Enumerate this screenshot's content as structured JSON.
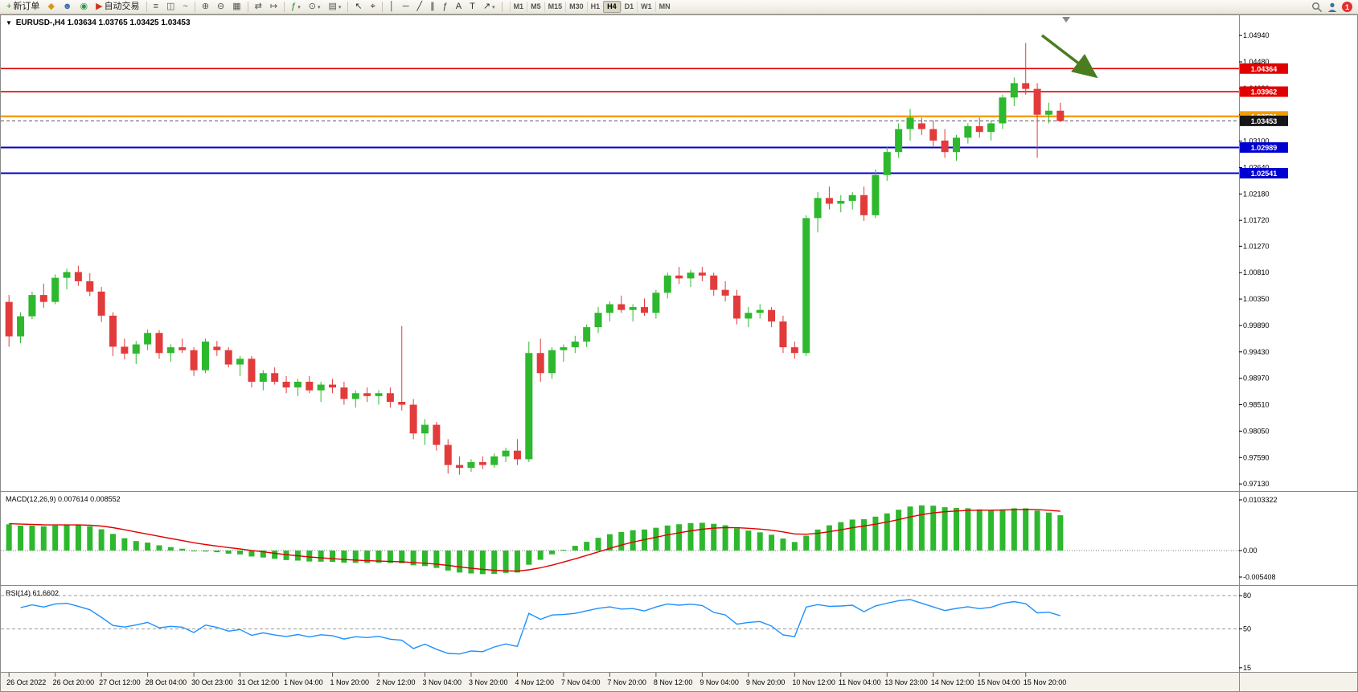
{
  "toolbar": {
    "tools": [
      {
        "name": "new-order-button",
        "glyph": "+",
        "color": "#189818",
        "label": "新订单"
      },
      {
        "name": "charts-button",
        "glyph": "◆",
        "color": "#d09820"
      },
      {
        "name": "profile-button",
        "glyph": "☻",
        "color": "#3a6ea5"
      },
      {
        "name": "news-button",
        "glyph": "◉",
        "color": "#2a9a4a"
      },
      {
        "name": "auto-trading-button",
        "glyph": "▶",
        "color": "#cc3322",
        "label": "自动交易"
      },
      {
        "sep": true
      },
      {
        "name": "bars-chart-button",
        "glyph": "≡",
        "color": "#555555"
      },
      {
        "name": "candles-chart-button",
        "glyph": "◫",
        "color": "#555555"
      },
      {
        "name": "line-chart-button",
        "glyph": "~",
        "color": "#555555"
      },
      {
        "sep": true
      },
      {
        "name": "zoom-in-button",
        "glyph": "⊕",
        "color": "#555555"
      },
      {
        "name": "zoom-out-button",
        "glyph": "⊖",
        "color": "#555555"
      },
      {
        "name": "tile-windows-button",
        "glyph": "▦",
        "color": "#555555"
      },
      {
        "sep": true
      },
      {
        "name": "auto-scroll-button",
        "glyph": "⇄",
        "color": "#555555"
      },
      {
        "name": "chart-shift-button",
        "glyph": "↦",
        "color": "#555555"
      },
      {
        "sep": true
      },
      {
        "name": "indicators-button",
        "glyph": "ƒ",
        "color": "#1f7a1f",
        "dropdown": true
      },
      {
        "name": "periods-button",
        "glyph": "⊙",
        "color": "#555555",
        "dropdown": true
      },
      {
        "name": "templates-button",
        "glyph": "▤",
        "color": "#555555",
        "dropdown": true
      },
      {
        "sep": true
      },
      {
        "name": "cursor-button",
        "glyph": "↖",
        "color": "#333333"
      },
      {
        "name": "crosshair-button",
        "glyph": "⌖",
        "color": "#333333"
      },
      {
        "sep": true
      },
      {
        "name": "vertical-line-button",
        "glyph": "│",
        "color": "#333333"
      },
      {
        "name": "horizontal-line-button",
        "glyph": "─",
        "color": "#333333"
      },
      {
        "name": "trendline-button",
        "glyph": "╱",
        "color": "#333333"
      },
      {
        "name": "channel-button",
        "glyph": "∥",
        "color": "#333333"
      },
      {
        "name": "fibonacci-button",
        "glyph": "ƒ",
        "color": "#333333"
      },
      {
        "name": "text-button",
        "glyph": "A",
        "color": "#333333"
      },
      {
        "name": "label-button",
        "glyph": "T",
        "color": "#333333"
      },
      {
        "name": "arrows-button",
        "glyph": "↗",
        "color": "#333333",
        "dropdown": true
      },
      {
        "sep": true
      }
    ],
    "timeframes": [
      "M1",
      "M5",
      "M15",
      "M30",
      "H1",
      "H4",
      "D1",
      "W1",
      "MN"
    ],
    "active_timeframe": "H4",
    "right": {
      "notification_count": "1"
    }
  },
  "chart": {
    "header": {
      "collapse_glyph": "▼",
      "symbol_period": "EURUSD-,H4",
      "ohlc": "1.03634 1.03765 1.03425 1.03453"
    },
    "levels": [
      {
        "price": 1.04364,
        "label": "1.04364",
        "color": "#e00000",
        "width": 1.6,
        "type": "resistance"
      },
      {
        "price": 1.03962,
        "label": "1.03962",
        "color": "#e00000",
        "width": 1.6,
        "type": "resistance"
      },
      {
        "price": 1.03531,
        "label": "1.03531",
        "color": "#f59d00",
        "width": 2.4,
        "type": "pivot"
      },
      {
        "price": 1.02989,
        "label": "1.02989",
        "color": "#0000d0",
        "width": 2.0,
        "type": "support"
      },
      {
        "price": 1.02541,
        "label": "1.02541",
        "color": "#0000d0",
        "width": 2.0,
        "type": "support"
      }
    ],
    "current_price": {
      "value": 1.03453,
      "label": "1.03453"
    },
    "price_axis": [
      "1.04940",
      "1.04480",
      "1.04020",
      "1.03560",
      "1.03100",
      "1.02640",
      "1.02180",
      "1.01720",
      "1.01270",
      "1.00810",
      "1.00350",
      "0.99890",
      "0.99430",
      "0.98970",
      "0.98510",
      "0.98050",
      "0.97590",
      "0.97130"
    ],
    "time_axis": [
      "26 Oct 2022",
      "26 Oct 20:00",
      "27 Oct 12:00",
      "28 Oct 04:00",
      "30 Oct 23:00",
      "31 Oct 12:00",
      "1 Nov 04:00",
      "1 Nov 20:00",
      "2 Nov 12:00",
      "3 Nov 04:00",
      "3 Nov 20:00",
      "4 Nov 12:00",
      "7 Nov 04:00",
      "7 Nov 20:00",
      "8 Nov 12:00",
      "9 Nov 04:00",
      "9 Nov 20:00",
      "10 Nov 12:00",
      "11 Nov 04:00",
      "13 Nov 23:00",
      "14 Nov 12:00",
      "15 Nov 04:00",
      "15 Nov 20:00"
    ]
  },
  "indicators": {
    "macd": {
      "label": "MACD(12,26,9)",
      "values": "0.007614 0.008552",
      "axis": [
        "0.0103322",
        "0.00",
        "-0.005408"
      ]
    },
    "rsi": {
      "label": "RSI(14)",
      "value": "61.6602",
      "axis": [
        "80",
        "50",
        "15"
      ],
      "levels": [
        80,
        50
      ]
    }
  },
  "chart_data": {
    "type": "candlestick",
    "symbol": "EURUSD-",
    "period": "H4",
    "colors": {
      "up": "#2db82d",
      "down": "#e23b3b",
      "macd_hist": "#2db82d",
      "macd_signal": "#e00000",
      "rsi_line": "#1e90ff",
      "level_red": "#e00000",
      "level_orange": "#f59d00",
      "level_blue": "#0000d0"
    },
    "annotation_arrow": {
      "color": "#4a7d1f",
      "direction": "down-right"
    },
    "candles": [
      [
        1.003,
        1.0042,
        0.9952,
        0.997
      ],
      [
        0.997,
        1.0012,
        0.9958,
        1.0005
      ],
      [
        1.0005,
        1.0048,
        1.0,
        1.0042
      ],
      [
        1.0042,
        1.0062,
        1.002,
        1.003
      ],
      [
        1.003,
        1.0078,
        1.0026,
        1.0072
      ],
      [
        1.0072,
        1.0088,
        1.0052,
        1.0082
      ],
      [
        1.0082,
        1.0093,
        1.0058,
        1.0066
      ],
      [
        1.0066,
        1.008,
        1.004,
        1.0048
      ],
      [
        1.0048,
        1.0056,
        0.9995,
        1.0006
      ],
      [
        1.0006,
        1.0012,
        0.9936,
        0.9952
      ],
      [
        0.9952,
        0.9966,
        0.993,
        0.994
      ],
      [
        0.994,
        0.9962,
        0.9922,
        0.9956
      ],
      [
        0.9956,
        0.9982,
        0.9946,
        0.9976
      ],
      [
        0.9976,
        0.9981,
        0.9931,
        0.9941
      ],
      [
        0.9941,
        0.9956,
        0.9926,
        0.9951
      ],
      [
        0.9951,
        0.9966,
        0.9941,
        0.9946
      ],
      [
        0.9946,
        0.9951,
        0.9901,
        0.9911
      ],
      [
        0.9911,
        0.9966,
        0.9906,
        0.9961
      ],
      [
        0.9952,
        0.9962,
        0.9936,
        0.9946
      ],
      [
        0.9946,
        0.9951,
        0.9916,
        0.9921
      ],
      [
        0.9921,
        0.9936,
        0.9901,
        0.9931
      ],
      [
        0.9931,
        0.9936,
        0.9881,
        0.9891
      ],
      [
        0.9891,
        0.9911,
        0.9876,
        0.9906
      ],
      [
        0.9906,
        0.9916,
        0.9886,
        0.9891
      ],
      [
        0.9891,
        0.9901,
        0.9871,
        0.9881
      ],
      [
        0.9881,
        0.9896,
        0.9866,
        0.9891
      ],
      [
        0.9891,
        0.9901,
        0.9871,
        0.9876
      ],
      [
        0.9876,
        0.9891,
        0.9856,
        0.9886
      ],
      [
        0.9886,
        0.9896,
        0.9871,
        0.9881
      ],
      [
        0.9881,
        0.9891,
        0.9851,
        0.9861
      ],
      [
        0.9861,
        0.9876,
        0.9846,
        0.9871
      ],
      [
        0.9871,
        0.9881,
        0.9856,
        0.9866
      ],
      [
        0.9866,
        0.9876,
        0.9851,
        0.9871
      ],
      [
        0.9871,
        0.9881,
        0.9846,
        0.9856
      ],
      [
        0.9856,
        0.9988,
        0.9841,
        0.9851
      ],
      [
        0.9851,
        0.9861,
        0.9791,
        0.9801
      ],
      [
        0.9801,
        0.9826,
        0.9781,
        0.9816
      ],
      [
        0.9816,
        0.9821,
        0.9771,
        0.9781
      ],
      [
        0.9781,
        0.9791,
        0.9731,
        0.9746
      ],
      [
        0.9746,
        0.9761,
        0.9729,
        0.9741
      ],
      [
        0.9741,
        0.9756,
        0.9734,
        0.9751
      ],
      [
        0.9751,
        0.9761,
        0.9739,
        0.9746
      ],
      [
        0.9746,
        0.9766,
        0.9741,
        0.9761
      ],
      [
        0.9761,
        0.9776,
        0.9751,
        0.9771
      ],
      [
        0.9771,
        0.9791,
        0.9746,
        0.9756
      ],
      [
        0.9756,
        0.9961,
        0.9751,
        0.9941
      ],
      [
        0.9941,
        0.9966,
        0.9891,
        0.9906
      ],
      [
        0.9906,
        0.9951,
        0.9896,
        0.9946
      ],
      [
        0.9946,
        0.9956,
        0.9926,
        0.9951
      ],
      [
        0.9951,
        0.9971,
        0.9941,
        0.9961
      ],
      [
        0.9961,
        0.9991,
        0.9951,
        0.9986
      ],
      [
        0.9986,
        1.0021,
        0.9976,
        1.0011
      ],
      [
        1.0011,
        1.0031,
        0.9996,
        1.0026
      ],
      [
        1.0026,
        1.0041,
        1.0011,
        1.0016
      ],
      [
        1.0016,
        1.0026,
        0.9996,
        1.0021
      ],
      [
        1.0021,
        1.0036,
        1.0006,
        1.0011
      ],
      [
        1.0011,
        1.0051,
        1.0001,
        1.0046
      ],
      [
        1.0046,
        1.0081,
        1.0036,
        1.0076
      ],
      [
        1.0076,
        1.0091,
        1.0061,
        1.0071
      ],
      [
        1.0071,
        1.0086,
        1.0056,
        1.0081
      ],
      [
        1.0081,
        1.0091,
        1.0066,
        1.0076
      ],
      [
        1.0076,
        1.0081,
        1.0041,
        1.0051
      ],
      [
        1.0051,
        1.0066,
        1.0031,
        1.0041
      ],
      [
        1.0041,
        1.0051,
        0.9991,
        1.0001
      ],
      [
        1.0001,
        1.0021,
        0.9986,
        1.0011
      ],
      [
        1.0011,
        1.0026,
        1.0001,
        1.0016
      ],
      [
        1.0016,
        1.0021,
        0.9986,
        0.9996
      ],
      [
        0.9996,
        1.0006,
        0.9941,
        0.9951
      ],
      [
        0.9951,
        0.9961,
        0.9931,
        0.9941
      ],
      [
        0.9941,
        1.0181,
        0.9936,
        1.0176
      ],
      [
        1.0176,
        1.0221,
        1.0151,
        1.0211
      ],
      [
        1.0211,
        1.0231,
        1.0191,
        1.0201
      ],
      [
        1.0201,
        1.0216,
        1.0186,
        1.0206
      ],
      [
        1.0206,
        1.0221,
        1.0191,
        1.0216
      ],
      [
        1.0216,
        1.0231,
        1.0171,
        1.0181
      ],
      [
        1.0181,
        1.0261,
        1.0176,
        1.0251
      ],
      [
        1.0251,
        1.0301,
        1.0241,
        1.0291
      ],
      [
        1.0291,
        1.0341,
        1.0281,
        1.0331
      ],
      [
        1.0331,
        1.0366,
        1.0311,
        1.0351
      ],
      [
        1.0341,
        1.0351,
        1.0321,
        1.0331
      ],
      [
        1.0331,
        1.0346,
        1.0301,
        1.0311
      ],
      [
        1.0311,
        1.0331,
        1.0281,
        1.0291
      ],
      [
        1.0291,
        1.0321,
        1.0276,
        1.0316
      ],
      [
        1.0316,
        1.0341,
        1.0306,
        1.0336
      ],
      [
        1.0336,
        1.0351,
        1.0316,
        1.0326
      ],
      [
        1.0326,
        1.0346,
        1.0311,
        1.0341
      ],
      [
        1.0341,
        1.0391,
        1.0331,
        1.0386
      ],
      [
        1.0386,
        1.0421,
        1.0371,
        1.0411
      ],
      [
        1.0411,
        1.0481,
        1.0391,
        1.0401
      ],
      [
        1.0401,
        1.0411,
        1.0281,
        1.0356
      ],
      [
        1.0356,
        1.0377,
        1.0341,
        1.0363
      ],
      [
        1.0363,
        1.0377,
        1.0343,
        1.0345
      ]
    ]
  }
}
